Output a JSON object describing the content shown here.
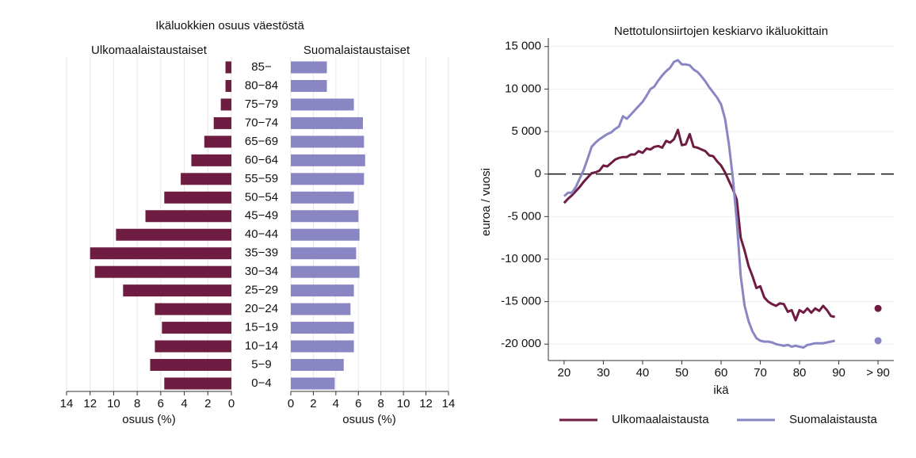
{
  "chart_data": [
    {
      "type": "pyramid",
      "title": "Ikäluokkien osuus väestöstä",
      "xlabel": "osuus (%)",
      "categories": [
        "85−",
        "80−84",
        "75−79",
        "70−74",
        "65−69",
        "60−64",
        "55−59",
        "50−54",
        "45−49",
        "40−44",
        "35−39",
        "30−34",
        "25−29",
        "20−24",
        "15−19",
        "10−14",
        "5−9",
        "0−4"
      ],
      "series": [
        {
          "name": "Ulkomaalaistaustaiset",
          "color": "#6e1c42",
          "values": [
            0.5,
            0.5,
            0.9,
            1.5,
            2.3,
            3.4,
            4.3,
            5.7,
            7.3,
            9.8,
            12.0,
            11.6,
            9.2,
            6.5,
            5.9,
            6.5,
            6.9,
            5.7
          ]
        },
        {
          "name": "Suomalaistaustaiset",
          "color": "#8a86c4",
          "values": [
            3.2,
            3.2,
            5.6,
            6.4,
            6.5,
            6.6,
            6.5,
            5.6,
            6.0,
            6.1,
            5.8,
            6.1,
            5.6,
            5.3,
            5.6,
            5.6,
            4.7,
            3.9
          ]
        }
      ],
      "xlim": [
        0,
        14
      ],
      "xticks": [
        0,
        2,
        4,
        6,
        8,
        10,
        12,
        14
      ],
      "grid": true
    },
    {
      "type": "line",
      "title": "Nettotulonsiirtojen keskiarvo ikäluokittain",
      "xlabel": "ikä",
      "ylabel": "euroa / vuosi",
      "x": [
        20,
        21,
        22,
        23,
        24,
        25,
        26,
        27,
        28,
        29,
        30,
        31,
        32,
        33,
        34,
        35,
        36,
        37,
        38,
        39,
        40,
        41,
        42,
        43,
        44,
        45,
        46,
        47,
        48,
        49,
        50,
        51,
        52,
        53,
        54,
        55,
        56,
        57,
        58,
        59,
        60,
        61,
        62,
        63,
        64,
        65,
        66,
        67,
        68,
        69,
        70,
        71,
        72,
        73,
        74,
        75,
        76,
        77,
        78,
        79,
        80,
        81,
        82,
        83,
        84,
        85,
        86,
        87,
        88,
        89
      ],
      "series": [
        {
          "name": "Ulkomaalaistausta",
          "color": "#6e1c42",
          "values": [
            -3400,
            -2900,
            -2500,
            -2000,
            -1500,
            -900,
            -400,
            100,
            200,
            400,
            1000,
            900,
            1300,
            1700,
            1900,
            2000,
            2000,
            2300,
            2300,
            2700,
            2500,
            3000,
            2900,
            3200,
            3300,
            3100,
            3900,
            3700,
            4100,
            5200,
            3400,
            3500,
            4700,
            3200,
            3100,
            2900,
            2700,
            2200,
            2100,
            1500,
            1000,
            200,
            -800,
            -1800,
            -3000,
            -7500,
            -9000,
            -10800,
            -12000,
            -13400,
            -13200,
            -14500,
            -15000,
            -15300,
            -15500,
            -15200,
            -15300,
            -16200,
            -16000,
            -17200,
            -16000,
            -16300,
            -15800,
            -16300,
            -15800,
            -16100,
            -15500,
            -16000,
            -16700,
            -16800
          ],
          "value_over_90": -15800
        },
        {
          "name": "Suomalaistausta",
          "color": "#8a86c4",
          "values": [
            -2600,
            -2200,
            -2200,
            -1500,
            -500,
            500,
            1800,
            3200,
            3700,
            4100,
            4400,
            4700,
            4900,
            5300,
            5600,
            6800,
            6500,
            7000,
            7500,
            8000,
            8500,
            9200,
            10000,
            10300,
            11000,
            11600,
            12100,
            12500,
            13200,
            13400,
            12900,
            12900,
            12800,
            12300,
            12000,
            11500,
            10900,
            10200,
            9600,
            9000,
            8200,
            6500,
            3500,
            -500,
            -5500,
            -12000,
            -15500,
            -17300,
            -18500,
            -19300,
            -19600,
            -19700,
            -19700,
            -19800,
            -20000,
            -20100,
            -20200,
            -20100,
            -20300,
            -20200,
            -20300,
            -20400,
            -20100,
            -20000,
            -19900,
            -19900,
            -19900,
            -19800,
            -19700,
            -19600
          ],
          "value_over_90": -19600
        }
      ],
      "xlim": [
        18,
        102
      ],
      "xticks": [
        20,
        30,
        40,
        50,
        60,
        70,
        80,
        90,
        {
          "value": 100,
          "label": "> 90"
        }
      ],
      "ylim": [
        -21000,
        16000
      ],
      "yticks": [
        {
          "value": -20000,
          "label": "-20 000"
        },
        {
          "value": -15000,
          "label": "-15 000"
        },
        {
          "value": -10000,
          "label": "-10 000"
        },
        {
          "value": -5000,
          "label": "-5 000"
        },
        0,
        {
          "value": 5000,
          "label": "5 000"
        },
        {
          "value": 10000,
          "label": "10 000"
        },
        {
          "value": 15000,
          "label": "15 000"
        }
      ],
      "reference_line": 0,
      "grid": true,
      "legend": "bottom"
    }
  ]
}
